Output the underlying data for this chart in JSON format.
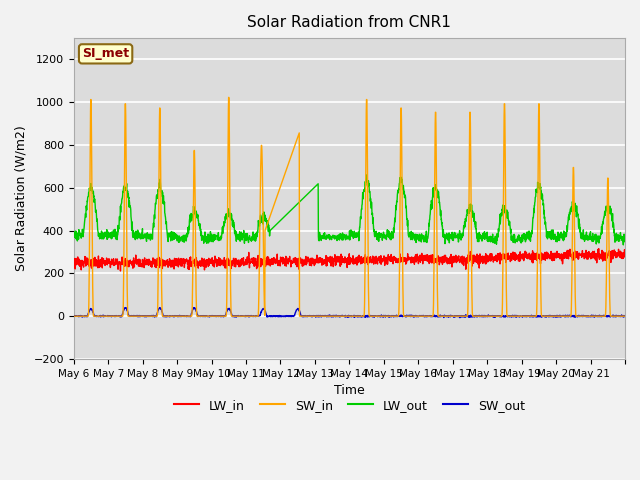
{
  "title": "Solar Radiation from CNR1",
  "xlabel": "Time",
  "ylabel": "Solar Radiation (W/m2)",
  "ylim": [
    -200,
    1300
  ],
  "yticks": [
    -200,
    0,
    200,
    400,
    600,
    800,
    1000,
    1200
  ],
  "xtick_labels": [
    "May 6",
    "May 7",
    "May 8",
    "May 9",
    "May 10",
    "May 11",
    "May 12",
    "May 13",
    "May 14",
    "May 15",
    "May 16",
    "May 17",
    "May 18",
    "May 19",
    "May 20",
    "May 21"
  ],
  "annotation_label": "SI_met",
  "annotation_color": "#8B0000",
  "annotation_bg": "#FFFFCC",
  "annotation_border": "#8B6914",
  "series_colors": {
    "LW_in": "#FF0000",
    "SW_in": "#FFA500",
    "LW_out": "#00CC00",
    "SW_out": "#0000CC"
  },
  "background_color": "#DCDCDC",
  "grid_color": "#FFFFFF",
  "linewidth": 1.0,
  "fig_width": 6.4,
  "fig_height": 4.8,
  "dpi": 100
}
